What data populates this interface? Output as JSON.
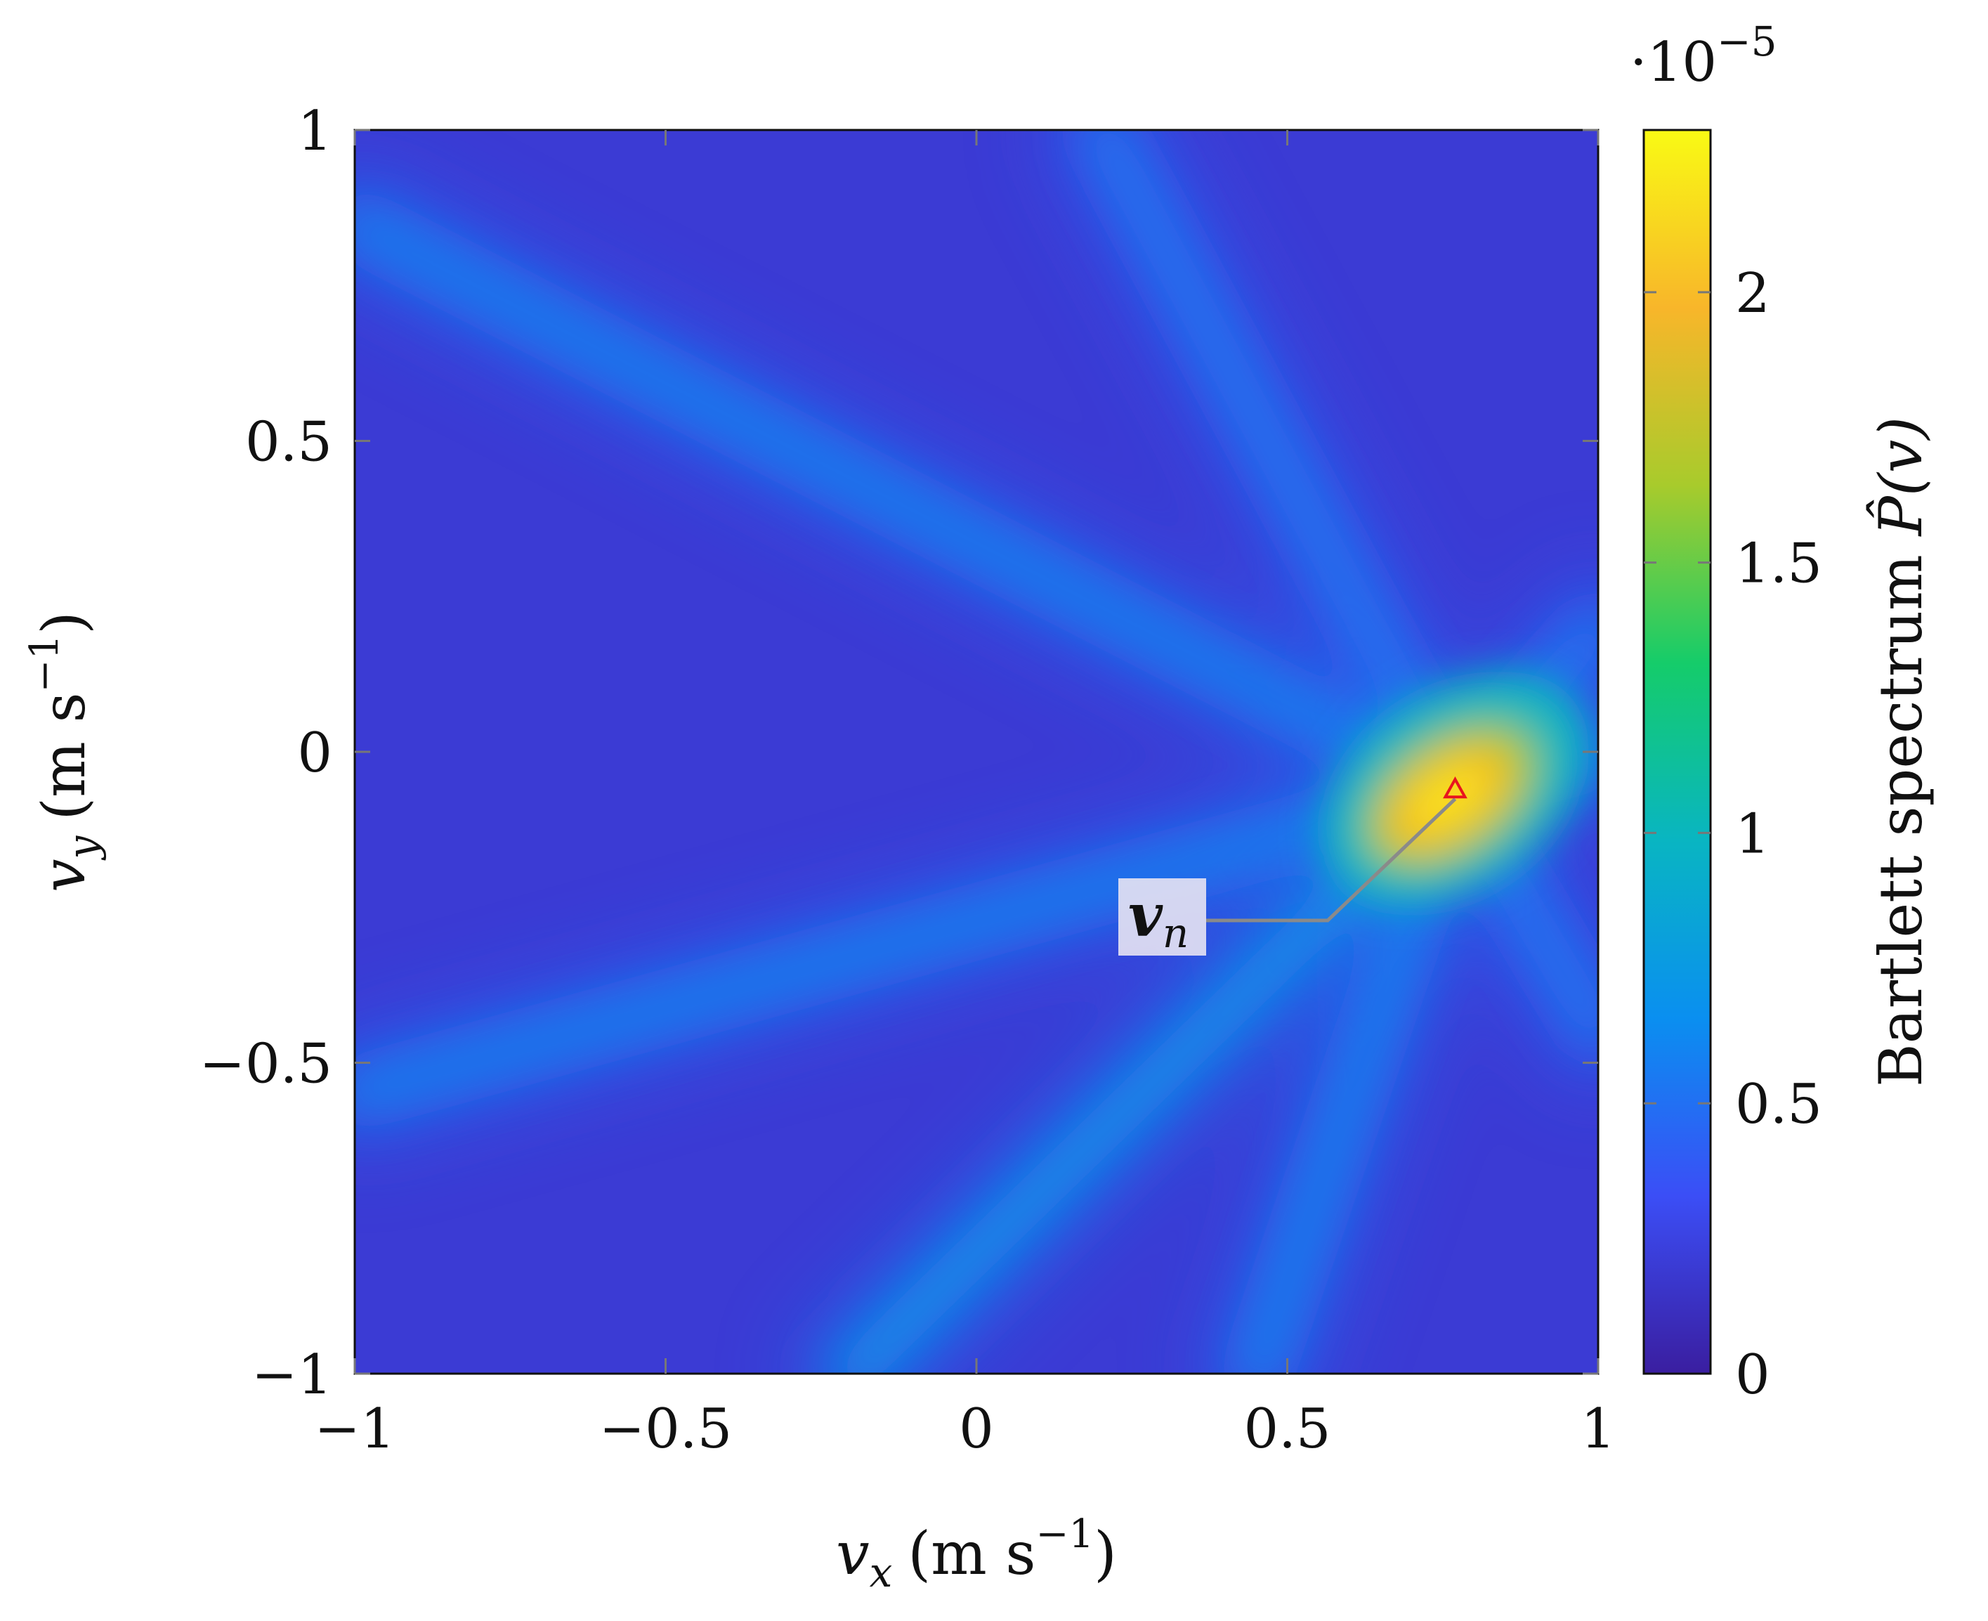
{
  "chart_data": {
    "type": "heatmap",
    "title": "",
    "xlabel": "v_x (m s^-1)",
    "ylabel": "v_y (m s^-1)",
    "xlabel_parts": {
      "var": "v",
      "sub": "x",
      "unit_open": "(m s",
      "sup": "−1",
      "unit_close": ")"
    },
    "ylabel_parts": {
      "var": "v",
      "sub": "y",
      "unit_open": "(m s",
      "sup": "−1",
      "unit_close": ")"
    },
    "xlim": [
      -1,
      1
    ],
    "ylim": [
      -1,
      1
    ],
    "x_ticks": [
      -1,
      -0.5,
      0,
      0.5,
      1
    ],
    "y_ticks": [
      -1,
      -0.5,
      0,
      0.5,
      1
    ],
    "x_tick_labels": [
      "−1",
      "−0.5",
      "0",
      "0.5",
      "1"
    ],
    "y_tick_labels": [
      "−1",
      "−0.5",
      "0",
      "0.5",
      "1"
    ],
    "grid": false,
    "colorbar": {
      "label": "Bartlett spectrum P̂(v)",
      "label_text": "Bartlett spectrum ",
      "label_symbol": "P̂(v)",
      "range": [
        0,
        2.3
      ],
      "ticks": [
        0,
        0.5,
        1,
        1.5,
        2
      ],
      "tick_labels": [
        "0",
        "0.5",
        "1",
        "1.5",
        "2"
      ],
      "multiplier": "·10",
      "multiplier_exp": "−5",
      "colormap": [
        "#3a1ea0",
        "#3b4ef6",
        "#0a8ff0",
        "#09b5c2",
        "#15cc6a",
        "#a8cb2c",
        "#f8b62a",
        "#f9fa14"
      ]
    },
    "peak": {
      "x": 0.77,
      "y": -0.06,
      "marker": "triangle",
      "color": "#e8141e"
    },
    "annotation": {
      "text": "v",
      "sub": "n",
      "points_to": [
        0.77,
        -0.06
      ]
    },
    "ridges": [
      {
        "from": [
          -1,
          0.85
        ],
        "to": [
          0.77,
          -0.06
        ],
        "peak_value": 0.6
      },
      {
        "from": [
          0.2,
          1
        ],
        "to": [
          0.77,
          -0.06
        ],
        "peak_value": 0.55
      },
      {
        "from": [
          -1,
          -0.55
        ],
        "to": [
          0.77,
          -0.06
        ],
        "peak_value": 0.6
      },
      {
        "from": [
          -0.2,
          -1
        ],
        "to": [
          0.77,
          -0.06
        ],
        "peak_value": 0.7
      },
      {
        "from": [
          0.45,
          -1
        ],
        "to": [
          0.77,
          -0.06
        ],
        "peak_value": 0.6
      },
      {
        "from": [
          1,
          0.0
        ],
        "to": [
          0.77,
          -0.06
        ],
        "peak_value": 0.6
      },
      {
        "from": [
          1,
          -0.45
        ],
        "to": [
          0.77,
          -0.06
        ],
        "peak_value": 0.55
      },
      {
        "from": [
          1,
          0.2
        ],
        "to": [
          0.77,
          -0.06
        ],
        "peak_value": 0.55
      }
    ],
    "background_value": 0.2
  }
}
